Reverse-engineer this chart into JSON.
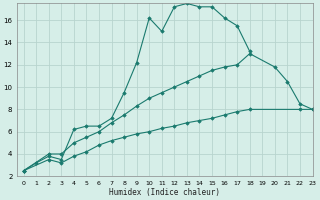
{
  "xlabel": "Humidex (Indice chaleur)",
  "background_color": "#d6eee8",
  "line_color": "#1a7a6e",
  "grid_color": "#b8d4ce",
  "series1_x": [
    0,
    1,
    2,
    3,
    4,
    5,
    6,
    7,
    8,
    9,
    10,
    11,
    12,
    13,
    14,
    15,
    16,
    17,
    18,
    19,
    20,
    21,
    22,
    23
  ],
  "series1_y": [
    2.5,
    3.2,
    3.8,
    3.5,
    6.2,
    6.5,
    6.5,
    7.2,
    9.5,
    12.2,
    16.2,
    15.0,
    17.2,
    17.5,
    17.2,
    17.2,
    16.2,
    15.5,
    13.2,
    null,
    null,
    null,
    null,
    null
  ],
  "series2_x": [
    0,
    2,
    3,
    4,
    5,
    6,
    7,
    8,
    9,
    10,
    11,
    12,
    13,
    14,
    15,
    16,
    17,
    18,
    19,
    20,
    21,
    22,
    23
  ],
  "series2_y": [
    2.5,
    4.0,
    4.0,
    5.0,
    5.5,
    6.0,
    6.8,
    7.5,
    8.3,
    9.0,
    9.5,
    10.0,
    10.5,
    11.0,
    11.5,
    11.8,
    12.0,
    13.0,
    null,
    11.8,
    10.5,
    8.5,
    8.0
  ],
  "series3_x": [
    0,
    2,
    3,
    4,
    5,
    6,
    7,
    8,
    9,
    10,
    11,
    12,
    13,
    14,
    15,
    16,
    17,
    18,
    19,
    20,
    21,
    22,
    23
  ],
  "series3_y": [
    2.5,
    3.5,
    3.2,
    3.8,
    4.2,
    4.8,
    5.2,
    5.5,
    5.8,
    6.0,
    6.3,
    6.5,
    6.8,
    7.0,
    7.2,
    7.5,
    7.8,
    8.0,
    null,
    null,
    null,
    8.0,
    8.0
  ],
  "ylim": [
    2,
    17.5
  ],
  "xlim": [
    -0.5,
    23
  ],
  "yticks": [
    2,
    4,
    6,
    8,
    10,
    12,
    14,
    16
  ],
  "xticks": [
    0,
    1,
    2,
    3,
    4,
    5,
    6,
    7,
    8,
    9,
    10,
    11,
    12,
    13,
    14,
    15,
    16,
    17,
    18,
    19,
    20,
    21,
    22,
    23
  ]
}
